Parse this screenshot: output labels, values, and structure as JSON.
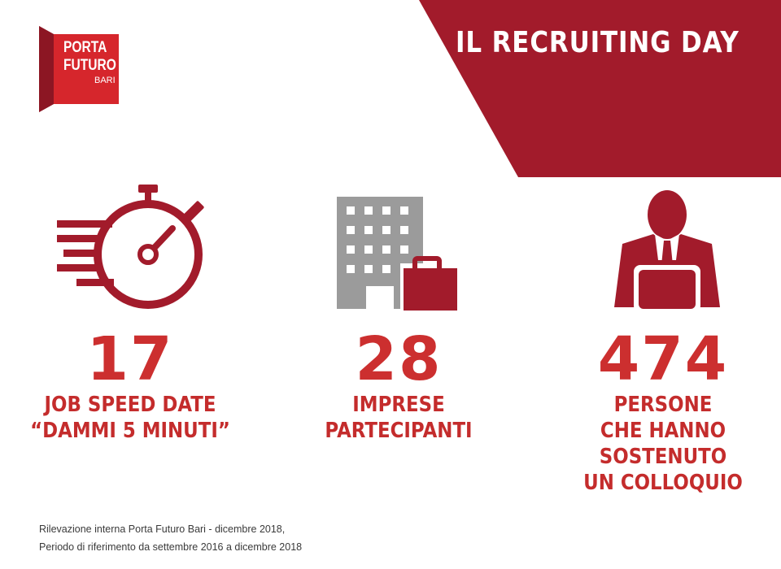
{
  "colors": {
    "brand_red": "#a21b2b",
    "number_red": "#cc2f2f",
    "icon_gray": "#9b9b9b"
  },
  "logo": {
    "line1": "PORTA",
    "line2": "FUTURO",
    "line3": "BARI"
  },
  "header": {
    "title": "IL RECRUITING DAY"
  },
  "stats": [
    {
      "icon": "stopwatch-icon",
      "value": "17",
      "label_lines": [
        "JOB SPEED DATE",
        "“DAMMI 5 MINUTI”"
      ]
    },
    {
      "icon": "building-briefcase-icon",
      "value": "28",
      "label_lines": [
        "IMPRESE",
        "PARTECIPANTI"
      ]
    },
    {
      "icon": "businessman-laptop-icon",
      "value": "474",
      "label_lines": [
        "PERSONE",
        "CHE HANNO",
        "SOSTENUTO",
        "UN COLLOQUIO"
      ]
    }
  ],
  "footnote": {
    "line1": "Rilevazione interna Porta Futuro Bari - dicembre 2018,",
    "line2": "Periodo di riferimento da settembre 2016 a dicembre 2018"
  }
}
